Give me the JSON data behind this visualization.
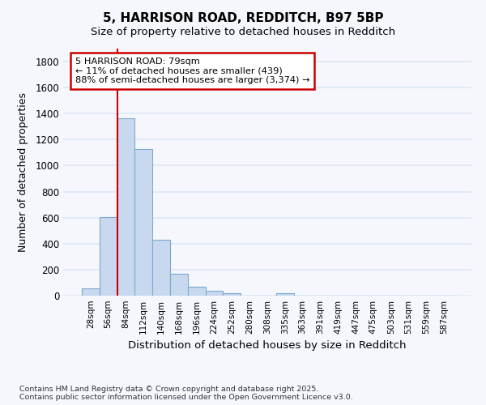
{
  "title_line1": "5, HARRISON ROAD, REDDITCH, B97 5BP",
  "title_line2": "Size of property relative to detached houses in Redditch",
  "xlabel": "Distribution of detached houses by size in Redditch",
  "ylabel": "Number of detached properties",
  "categories": [
    "28sqm",
    "56sqm",
    "84sqm",
    "112sqm",
    "140sqm",
    "168sqm",
    "196sqm",
    "224sqm",
    "252sqm",
    "280sqm",
    "308sqm",
    "335sqm",
    "363sqm",
    "391sqm",
    "419sqm",
    "447sqm",
    "475sqm",
    "503sqm",
    "531sqm",
    "559sqm",
    "587sqm"
  ],
  "values": [
    55,
    605,
    1365,
    1125,
    430,
    170,
    68,
    38,
    18,
    0,
    0,
    18,
    0,
    0,
    0,
    0,
    0,
    0,
    0,
    0,
    0
  ],
  "bar_color": "#c8d8ee",
  "bar_edge_color": "#7aabcf",
  "vline_color": "#cc0000",
  "vline_x": 1.5,
  "annotation_text": "5 HARRISON ROAD: 79sqm\n← 11% of detached houses are smaller (439)\n88% of semi-detached houses are larger (3,374) →",
  "annotation_box_color": "#ffffff",
  "annotation_box_edge": "#cc0000",
  "background_color": "#f5f7fc",
  "grid_color": "#dce8f5",
  "ylim": [
    0,
    1900
  ],
  "yticks": [
    0,
    200,
    400,
    600,
    800,
    1000,
    1200,
    1400,
    1600,
    1800
  ],
  "footer_line1": "Contains HM Land Registry data © Crown copyright and database right 2025.",
  "footer_line2": "Contains public sector information licensed under the Open Government Licence v3.0."
}
